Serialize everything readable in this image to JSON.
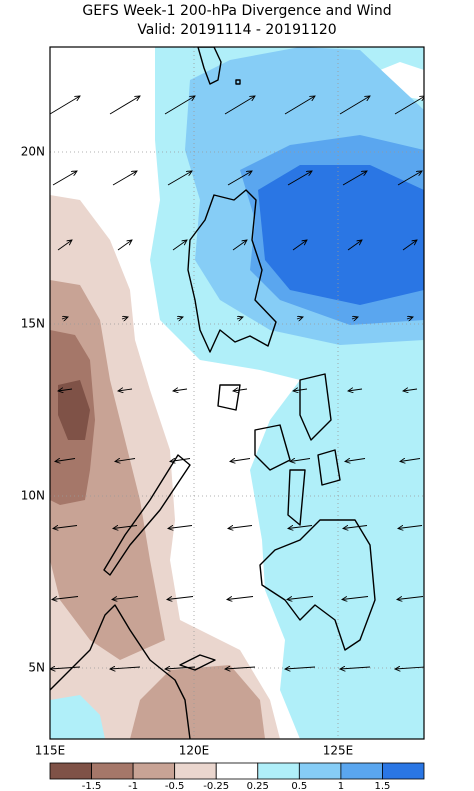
{
  "title": "GEFS Week-1 200-hPa Divergence and Wind",
  "subtitle": "Valid: 20191114 - 20191120",
  "lon_labels": [
    "115E",
    "120E",
    "125E"
  ],
  "lat_labels": [
    "5N",
    "10N",
    "15N",
    "20N"
  ],
  "colorbar": {
    "labels": [
      "-1.5",
      "-1",
      "-0.5",
      "-0.25",
      "0.25",
      "0.5",
      "1",
      "1.5"
    ],
    "colors": [
      "#7f5247",
      "#a57769",
      "#c8a395",
      "#ead6ce",
      "#ffffff",
      "#b0eff9",
      "#86cdf6",
      "#5aa6ef",
      "#2a76e4"
    ]
  }
}
